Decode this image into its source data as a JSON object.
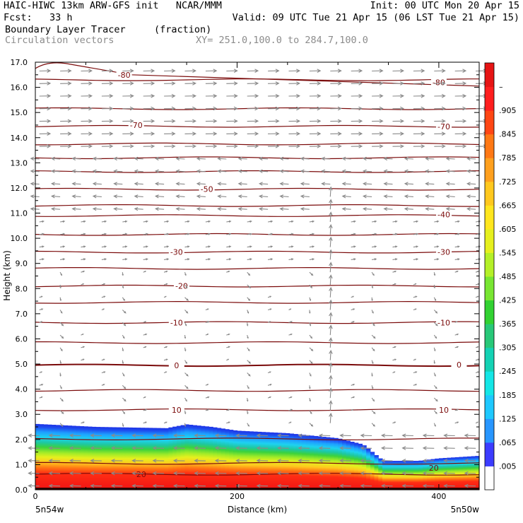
{
  "header": {
    "line1_left": "HAIC-HIWC 13km ARW-GFS init   NCAR/MMM",
    "line1_right": "Init: 00 UTC Mon 20 Apr 15",
    "line2_left": "Fcst:   33 h",
    "line2_right": "Valid: 09 UTC Tue 21 Apr 15 (06 LST Tue 21 Apr 15)",
    "field1_name": "Boundary Layer Tracer",
    "field1_units": "(fraction)",
    "field2_name": "Circulation vectors",
    "cross_section": "XY= 251.0,100.0 to 284.7,100.0"
  },
  "colors": {
    "contour": "#7a0a0a",
    "vector": "#8a8a8a"
  },
  "chart_data": {
    "type": "heatmap",
    "xlabel": "Distance (km)",
    "ylabel": "Height (km)",
    "xlim": [
      0,
      440
    ],
    "ylim": [
      0,
      17
    ],
    "x_ticks": [
      "0",
      "200",
      "400"
    ],
    "y_ticks": [
      "0.0",
      "1.0",
      "2.0",
      "3.0",
      "4.0",
      "5.0",
      "6.0",
      "7.0",
      "8.0",
      "9.0",
      "10.0",
      "11.0",
      "12.0",
      "13.0",
      "14.0",
      "15.0",
      "16.0",
      "17.0"
    ],
    "x_endpoint_labels": [
      "5n54w",
      "5n50w"
    ],
    "colorbar_labels": [
      ".005",
      ".065",
      ".125",
      ".185",
      ".245",
      ".305",
      ".365",
      ".425",
      ".485",
      ".545",
      ".605",
      ".665",
      ".725",
      ".785",
      ".845",
      ".905",
      "–"
    ],
    "colorbar_colors": [
      "#ffffff",
      "#3c3cff",
      "#2896ff",
      "#1ec8ff",
      "#14e6e6",
      "#14d2b4",
      "#28c878",
      "#32d232",
      "#78e632",
      "#b4f028",
      "#e6f01e",
      "#ffe61e",
      "#ffc81e",
      "#ffa01e",
      "#ff7814",
      "#ff4614",
      "#ff1e1e",
      "#e61414"
    ],
    "boundary_layer_top_km": [
      {
        "x": 0,
        "top": 2.62
      },
      {
        "x": 60,
        "top": 2.5
      },
      {
        "x": 130,
        "top": 2.45
      },
      {
        "x": 150,
        "top": 2.6
      },
      {
        "x": 175,
        "top": 2.5
      },
      {
        "x": 200,
        "top": 2.35
      },
      {
        "x": 250,
        "top": 2.25
      },
      {
        "x": 300,
        "top": 2.05
      },
      {
        "x": 325,
        "top": 1.8
      },
      {
        "x": 345,
        "top": 1.15
      },
      {
        "x": 380,
        "top": 1.15
      },
      {
        "x": 400,
        "top": 1.25
      },
      {
        "x": 440,
        "top": 1.35
      }
    ],
    "isotherm_labels": [
      {
        "label": "-80",
        "x": 88,
        "height": 16.5
      },
      {
        "label": "-80",
        "x": 400,
        "height": 16.2
      },
      {
        "label": "-70",
        "x": 100,
        "height": 14.5
      },
      {
        "label": "-70",
        "x": 405,
        "height": 14.45
      },
      {
        "label": "-50",
        "x": 170,
        "height": 11.95
      },
      {
        "label": "-40",
        "x": 405,
        "height": 10.95
      },
      {
        "label": "-30",
        "x": 140,
        "height": 9.45
      },
      {
        "label": "-30",
        "x": 405,
        "height": 9.45
      },
      {
        "label": "-20",
        "x": 145,
        "height": 8.1
      },
      {
        "label": "-10",
        "x": 140,
        "height": 6.65
      },
      {
        "label": "-10",
        "x": 405,
        "height": 6.65
      },
      {
        "label": "0",
        "x": 140,
        "height": 4.95
      },
      {
        "label": "0",
        "x": 420,
        "height": 4.98
      },
      {
        "label": "10",
        "x": 140,
        "height": 3.18
      },
      {
        "label": "10",
        "x": 405,
        "height": 3.18
      },
      {
        "label": "20",
        "x": 105,
        "height": 0.62
      },
      {
        "label": "20",
        "x": 395,
        "height": 0.87
      }
    ],
    "isotherm_heights_km": [
      0.62,
      1.05,
      2.02,
      3.18,
      3.95,
      4.95,
      5.85,
      6.65,
      7.45,
      8.1,
      8.8,
      9.45,
      10.15,
      10.9,
      11.3,
      11.95,
      12.65,
      13.2,
      13.75,
      14.45,
      15.15,
      16.3
    ]
  }
}
